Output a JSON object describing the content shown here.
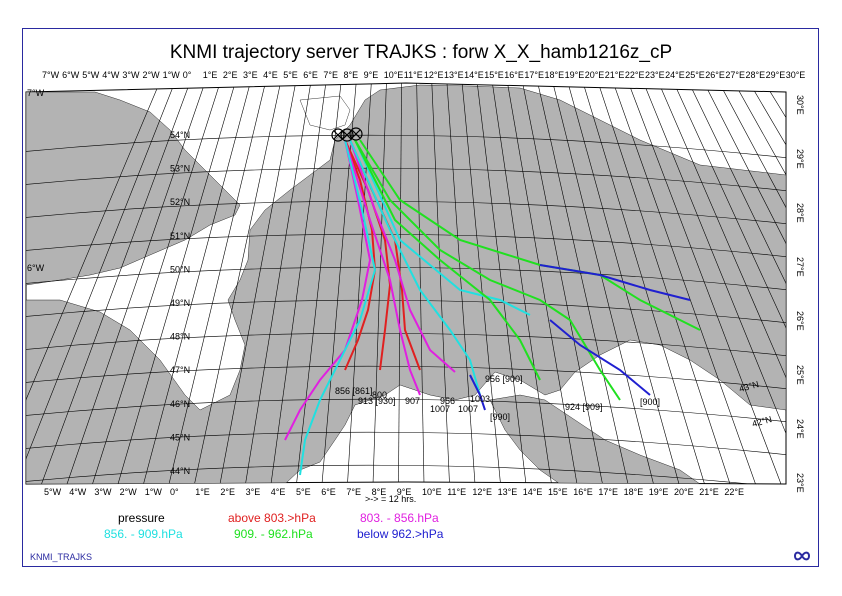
{
  "title": "KNMI trajectory server TRAJKS : forw X_X_hamb1216z_cP",
  "top_lon_labels": [
    "7°W",
    "6°W",
    "5°W",
    "4°W",
    "3°W",
    "2°W",
    "1°W",
    "0°",
    "1°E",
    "2°E",
    "3°E",
    "4°E",
    "5°E",
    "6°E",
    "7°E",
    "8°E",
    "9°E",
    "10°E",
    "11°E",
    "12°E",
    "13°E",
    "14°E",
    "15°E",
    "16°E",
    "17°E",
    "18°E",
    "19°E",
    "20°E",
    "21°E",
    "22°E",
    "23°E",
    "24°E",
    "25°E",
    "26°E",
    "27°E",
    "28°E",
    "29°E",
    "30°E"
  ],
  "bottom_lon_labels": [
    "5°W",
    "4°W",
    "3°W",
    "2°W",
    "1°W",
    "0°",
    "1°E",
    "2°E",
    "3°E",
    "4°E",
    "5°E",
    "6°E",
    "7°E",
    "8°E",
    "9°E",
    "10°E",
    "11°E",
    "12°E",
    "13°E",
    "14°E",
    "15°E",
    "16°E",
    "17°E",
    "18°E",
    "19°E",
    "20°E",
    "21°E",
    "22°E"
  ],
  "right_lon_labels": [
    "30°E",
    "29°E",
    "28°E",
    "27°E",
    "26°E",
    "25°E",
    "24°E",
    "23°E"
  ],
  "left_lon_labels": [
    "7°W",
    "6°W"
  ],
  "lat_labels": [
    "54°N",
    "53°N",
    "52°N",
    "51°N",
    "50°N",
    "49°N",
    "48°N",
    "47°N",
    "46°N",
    "45°N",
    "44°N"
  ],
  "inner_lat_labels": [
    "43°N",
    "42°N"
  ],
  "trajectory_labels": [
    "856 [861]",
    "913 [930]",
    "800",
    "907",
    "1007",
    "1007",
    "956",
    "1003",
    "956 [900]",
    "924 [909]",
    "[900]",
    "[990]"
  ],
  "time_note": ">-> = 12 hrs.",
  "legend": {
    "title": "pressure",
    "items": [
      {
        "label": "above 803.>hPa",
        "color": "#e02020"
      },
      {
        "label": "803. -   856.hPa",
        "color": "#e020e0"
      },
      {
        "label": "856. -   909.hPa",
        "color": "#20e0e0"
      },
      {
        "label": "909. -   962.hPa",
        "color": "#20e020"
      },
      {
        "label": "below 962.>hPa",
        "color": "#2020d0"
      }
    ]
  },
  "footer_left": "KNMI_TRAJKS",
  "colors": {
    "land": "#b3b3b3",
    "sea": "#ffffff",
    "grid": "#000000",
    "frame": "#2a2aa0"
  },
  "logo_icon": "knmi-logo-icon"
}
